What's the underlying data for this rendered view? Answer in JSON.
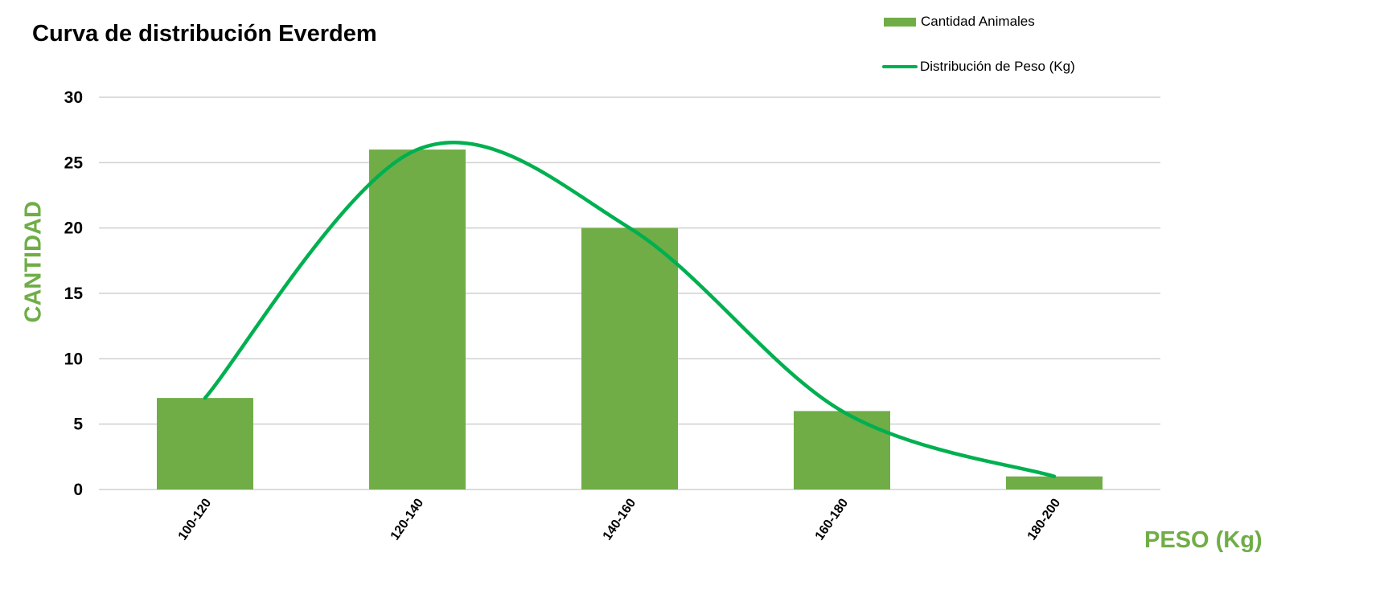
{
  "colors": {
    "bar": "#70AD47",
    "line": "#00B050",
    "grid": "#D0D0D0",
    "axis_title": "#70AD47"
  },
  "chart_data": {
    "type": "bar",
    "title": "Curva de distribución Everdem",
    "xlabel": "PESO (Kg)",
    "ylabel": "CANTIDAD",
    "categories": [
      "100-120",
      "120-140",
      "140-160",
      "160-180",
      "180-200"
    ],
    "series": [
      {
        "name": "Cantidad Animales",
        "type": "bar",
        "values": [
          7,
          26,
          20,
          6,
          1
        ]
      },
      {
        "name": "Distribución de Peso (Kg)",
        "type": "line",
        "smooth": true,
        "values": [
          7,
          26,
          20,
          6,
          1
        ]
      }
    ],
    "ylim": [
      0,
      30
    ],
    "yticks": [
      0,
      5,
      10,
      15,
      20,
      25,
      30
    ],
    "grid": true,
    "legend": "top-right"
  }
}
